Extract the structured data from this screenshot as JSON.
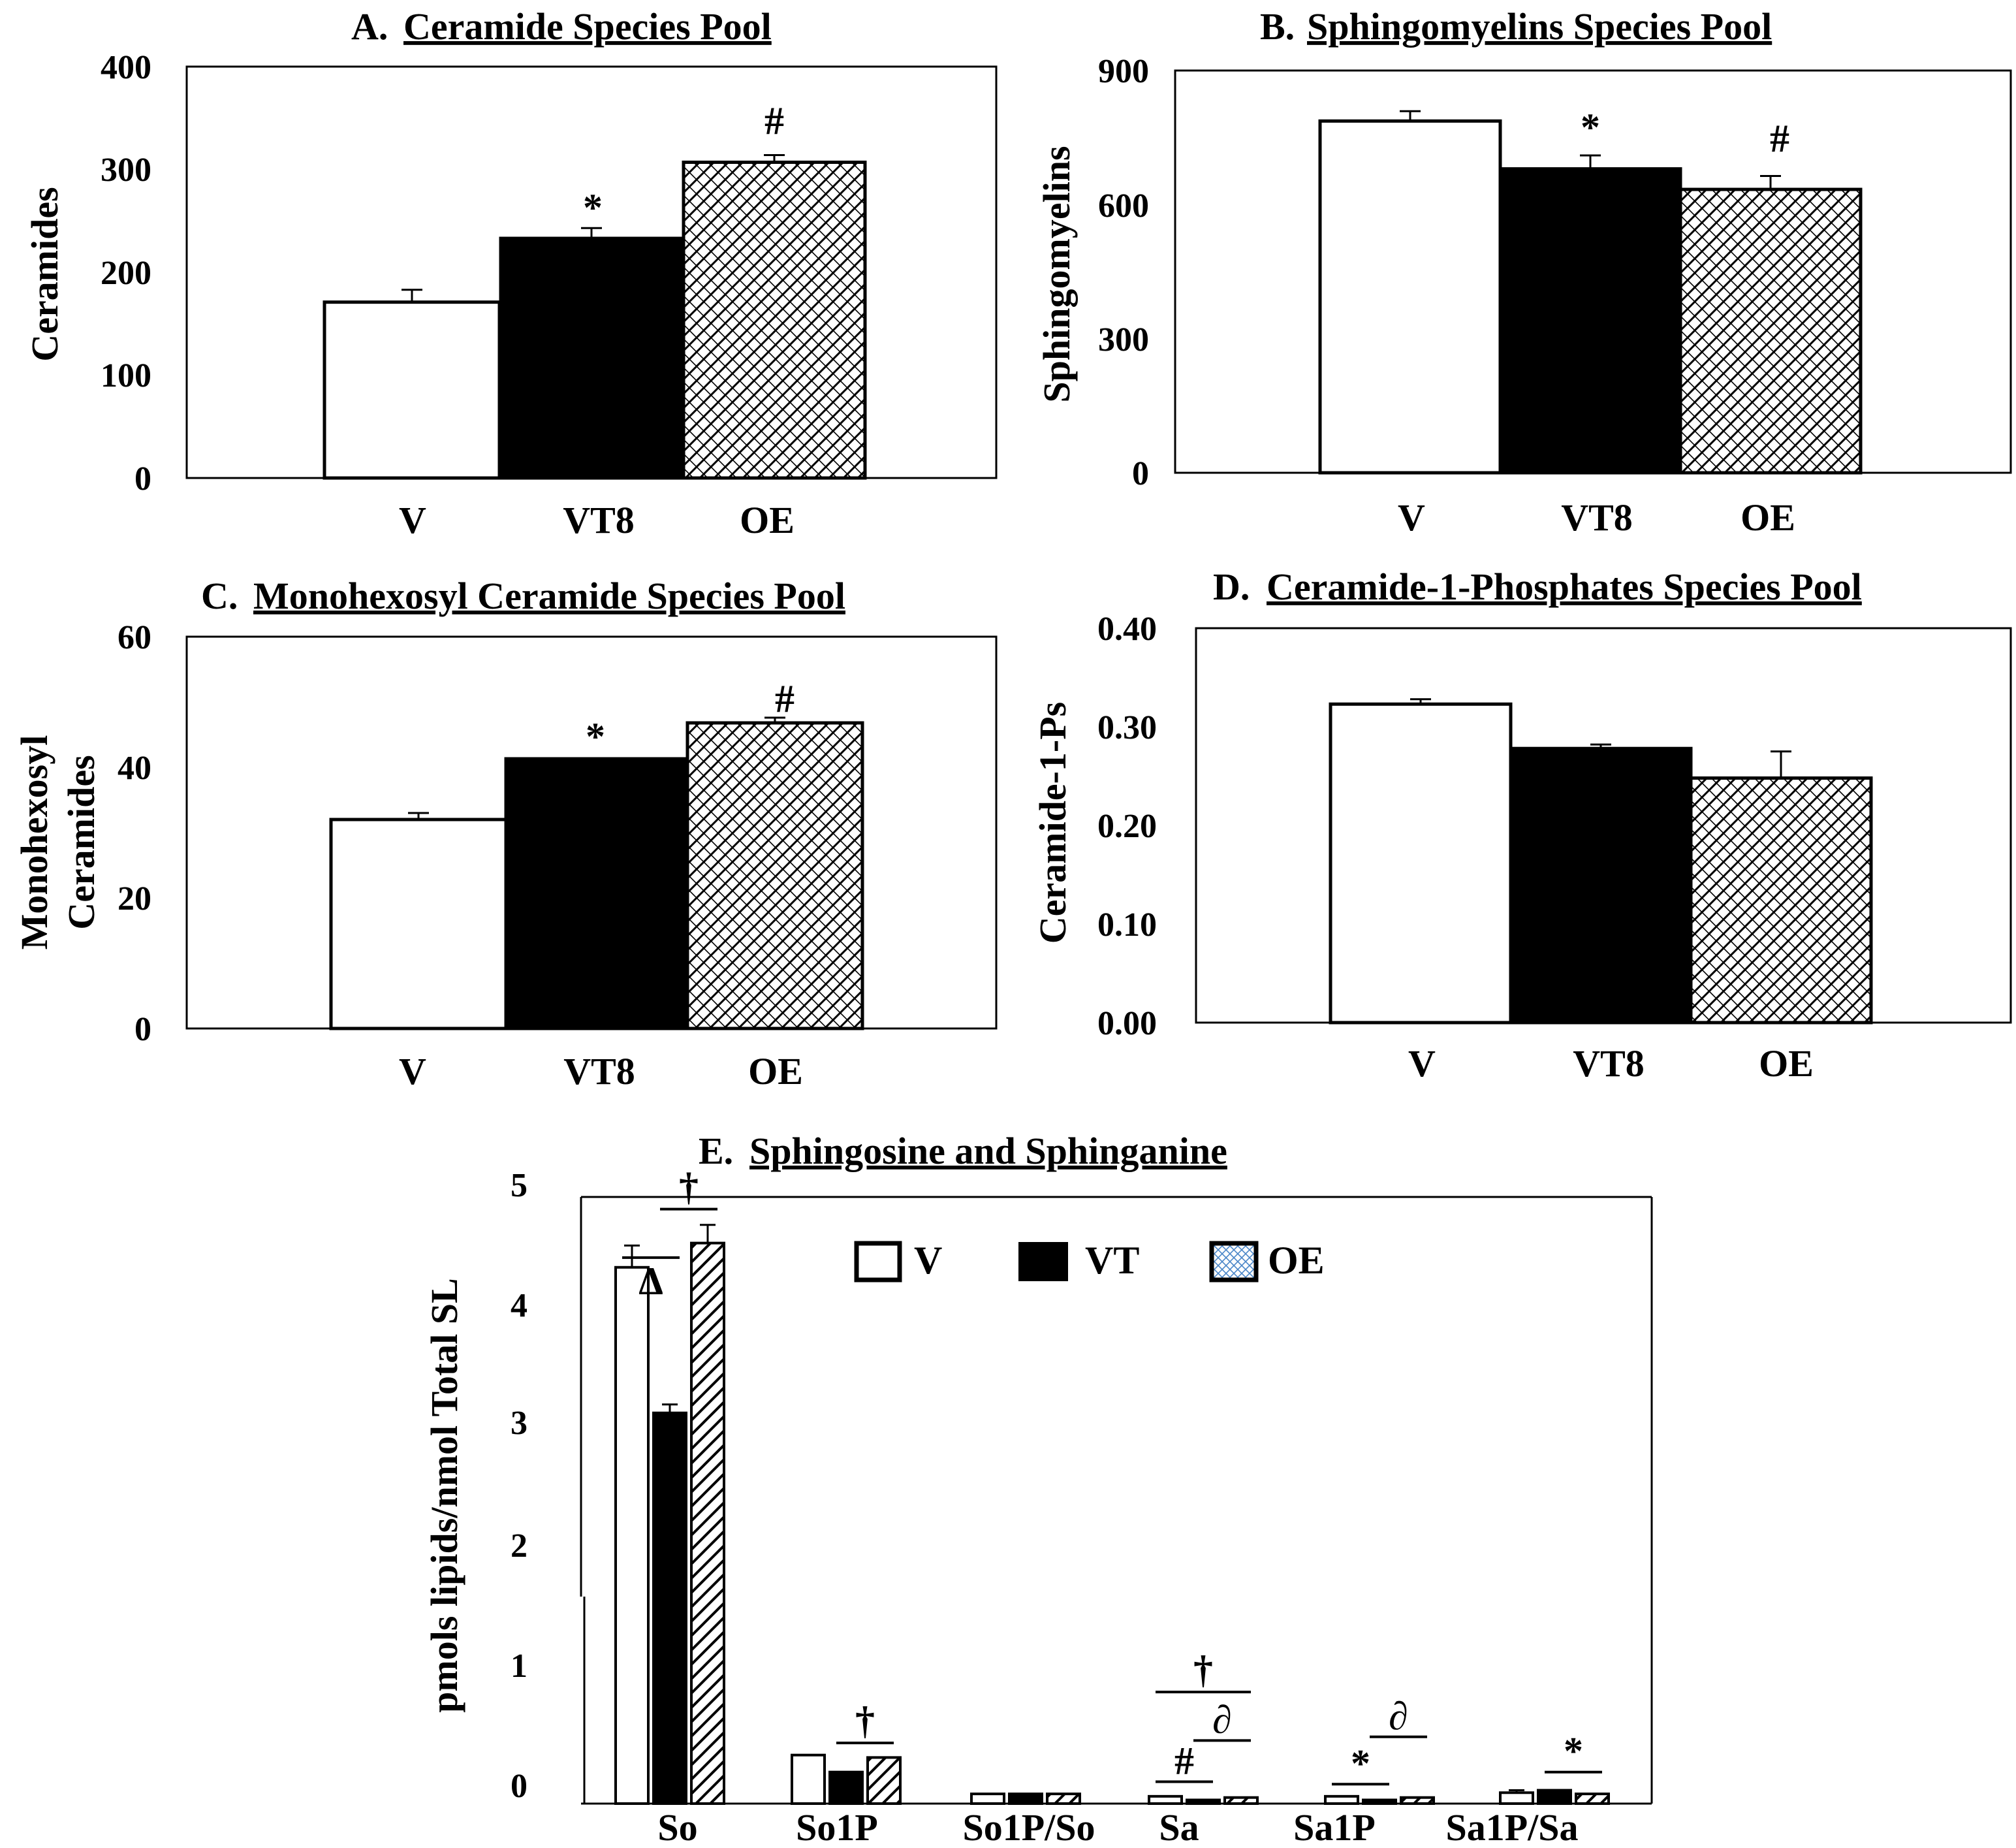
{
  "chart_data": [
    {
      "id": "A",
      "type": "bar",
      "title_prefix": "A.",
      "title_main": "Ceramide Species Pool",
      "ylabel": "Ceramides",
      "ylim": [
        0,
        400
      ],
      "ytick_labels": [
        "0",
        "100",
        "200",
        "300",
        "400"
      ],
      "categories": [
        "V",
        "VT8",
        "OE"
      ],
      "values": [
        171,
        233,
        307
      ],
      "errors": [
        12,
        10,
        7
      ],
      "annotations": [
        "",
        "*",
        "#"
      ],
      "fills": [
        "white",
        "black",
        "hatch"
      ]
    },
    {
      "id": "B",
      "type": "bar",
      "title_prefix": "B.",
      "title_main": "Sphingomyelins Species Pool",
      "ylabel": "Sphingomyelins",
      "ylim": [
        0,
        900
      ],
      "ytick_labels": [
        "0",
        "300",
        "600",
        "900"
      ],
      "categories": [
        "V",
        "VT8",
        "OE"
      ],
      "values": [
        787,
        680,
        634
      ],
      "errors": [
        22,
        30,
        30
      ],
      "annotations": [
        "",
        "*",
        "#"
      ],
      "fills": [
        "white",
        "black",
        "hatch"
      ]
    },
    {
      "id": "C",
      "type": "bar",
      "title_prefix": "C.",
      "title_main": "Monohexosyl Ceramide Species Pool",
      "ylabel_lines": [
        "Monohexosyl",
        "Ceramides"
      ],
      "ylim": [
        0,
        60
      ],
      "ytick_labels": [
        "0",
        "20",
        "40",
        "60"
      ],
      "categories": [
        "V",
        "VT8",
        "OE"
      ],
      "values": [
        32,
        41.3,
        46.8
      ],
      "errors": [
        1.0,
        0.0,
        0.8
      ],
      "annotations": [
        "",
        "*",
        "#"
      ],
      "fills": [
        "white",
        "black",
        "hatch"
      ]
    },
    {
      "id": "D",
      "type": "bar",
      "title_prefix": "D.",
      "title_main": "Ceramide-1-Phosphates Species Pool",
      "ylabel": "Ceramide-1-Ps",
      "ylim": [
        0,
        0.4
      ],
      "ytick_labels": [
        "0.00",
        "0.10",
        "0.20",
        "0.30",
        "0.40"
      ],
      "categories": [
        "V",
        "VT8",
        "OE"
      ],
      "values": [
        0.323,
        0.278,
        0.248
      ],
      "errors": [
        0.005,
        0.004,
        0.027
      ],
      "annotations": [
        "",
        "",
        ""
      ],
      "fills": [
        "white",
        "black",
        "hatch"
      ]
    },
    {
      "id": "E",
      "type": "bar",
      "title_prefix": "E.",
      "title_main": "Sphingosine and Sphinganine",
      "ylabel": "pmols lipids/nmol Total SL",
      "ylim": [
        0,
        5
      ],
      "ytick_labels": [
        "0",
        "1",
        "2",
        "3",
        "4",
        "5"
      ],
      "categories": [
        "So",
        "So1P",
        "So1P/So",
        "Sa",
        "Sa1P",
        "Sa1P/Sa"
      ],
      "series": [
        {
          "name": "V",
          "fill": "white",
          "values": [
            4.42,
            0.4,
            0.08,
            0.06,
            0.06,
            0.09
          ],
          "errors": [
            0.18,
            0.0,
            0.0,
            0.0,
            0.0,
            0.02
          ]
        },
        {
          "name": "VT",
          "fill": "black",
          "values": [
            3.22,
            0.26,
            0.08,
            0.03,
            0.03,
            0.11
          ],
          "errors": [
            0.07,
            0.0,
            0.0,
            0.0,
            0.0,
            0.0
          ]
        },
        {
          "name": "OE",
          "fill": "hatch",
          "values": [
            4.62,
            0.38,
            0.08,
            0.05,
            0.05,
            0.08
          ],
          "errors": [
            0.15,
            0.0,
            0.0,
            0.0,
            0.0,
            0.0
          ]
        }
      ],
      "legend": [
        "V",
        "VT",
        "OE"
      ],
      "legend_position": "top-center",
      "significance": [
        {
          "symbol": "Δ",
          "category": "So",
          "from": 0,
          "to": 1,
          "at": 4.5
        },
        {
          "symbol": "†",
          "category": "So",
          "from": 1,
          "to": 2,
          "at": 4.9
        },
        {
          "symbol": "†",
          "category": "So1P",
          "from": 1,
          "to": 2,
          "at": 0.5
        },
        {
          "symbol": "#",
          "category": "Sa",
          "from": 0,
          "to": 1,
          "at": 0.18
        },
        {
          "symbol": "∂",
          "category": "Sa",
          "from": 1,
          "to": 2,
          "at": 0.52
        },
        {
          "symbol": "†",
          "category": "Sa",
          "from": 0,
          "to": 2,
          "at": 0.92
        },
        {
          "symbol": "*",
          "category": "Sa1P",
          "from": 0,
          "to": 1,
          "at": 0.16
        },
        {
          "symbol": "∂",
          "category": "Sa1P",
          "from": 1,
          "to": 2,
          "at": 0.55
        },
        {
          "symbol": "*",
          "category": "Sa1P/Sa",
          "from": 1,
          "to": 2,
          "at": 0.26
        }
      ]
    }
  ]
}
